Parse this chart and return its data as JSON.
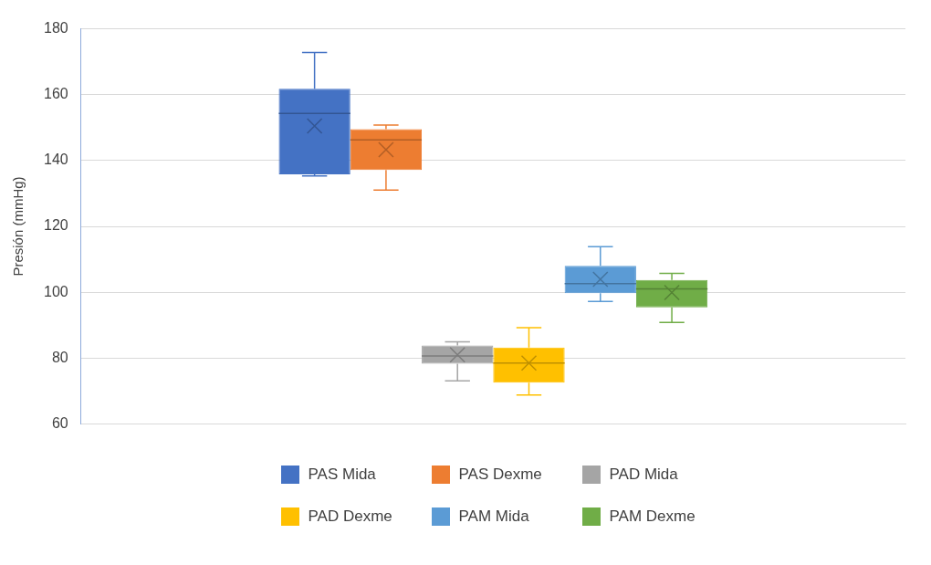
{
  "chart_data": {
    "type": "box",
    "ylabel": "Presión (mmHg)",
    "categories": [
      null
    ],
    "ylim": [
      60,
      180
    ],
    "yticks": [
      60,
      80,
      100,
      120,
      140,
      160,
      180
    ],
    "grid": "y",
    "legend": "bottom",
    "tick_labels": "y",
    "marker": "cross",
    "series": [
      {
        "name": "PAS Mida",
        "color": "#4472c4",
        "boxes": [
          {
            "low": 135.3,
            "q1": 135.8,
            "median": 154.3,
            "q3": 161.8,
            "high": 172.8,
            "mean": 150.5
          }
        ]
      },
      {
        "name": "PAS Dexme",
        "color": "#ed7d31",
        "boxes": [
          {
            "low": 131,
            "q1": 137.1,
            "median": 146.3,
            "q3": 149.5,
            "high": 150.8,
            "mean": 143.3
          }
        ]
      },
      {
        "name": "PAD Mida",
        "color": "#a5a5a5",
        "boxes": [
          {
            "low": 73.1,
            "q1": 78.3,
            "median": 80.6,
            "q3": 83.8,
            "high": 84.9,
            "mean": 81
          }
        ]
      },
      {
        "name": "PAD Dexme",
        "color": "#ffc000",
        "boxes": [
          {
            "low": 68.8,
            "q1": 72.5,
            "median": 78.5,
            "q3": 83.2,
            "high": 89.2,
            "mean": 78.5
          }
        ]
      },
      {
        "name": "PAM Mida",
        "color": "#5b9bd5",
        "boxes": [
          {
            "low": 97.2,
            "q1": 99.7,
            "median": 102.6,
            "q3": 108,
            "high": 113.8,
            "mean": 103.9
          }
        ]
      },
      {
        "name": "PAM Dexme",
        "color": "#70ad47",
        "boxes": [
          {
            "low": 90.8,
            "q1": 95.4,
            "median": 101,
            "q3": 103.7,
            "high": 105.7,
            "mean": 99.9
          }
        ]
      }
    ]
  }
}
